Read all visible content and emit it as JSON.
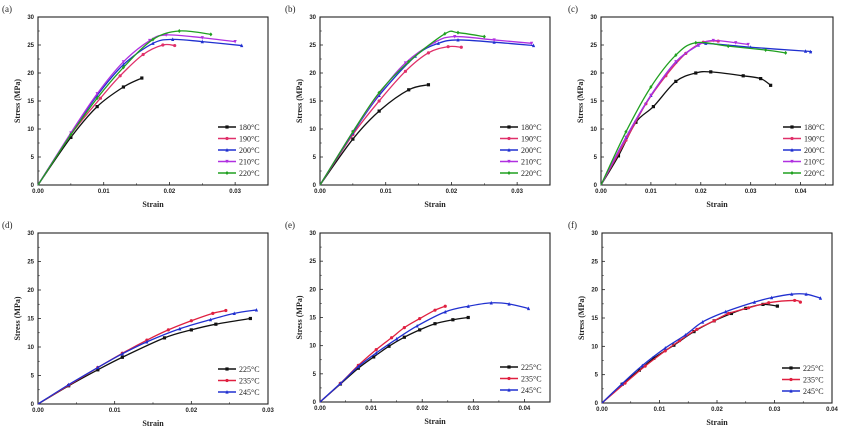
{
  "chart_data": [
    {
      "type": "line",
      "panel_label": "(a)",
      "xlabel": "Strain",
      "ylabel": "Stress (MPa)",
      "xlim": [
        0,
        0.035
      ],
      "ylim": [
        0,
        30
      ],
      "xticks": [
        "0.00",
        "0.01",
        "0.02",
        "0.03"
      ],
      "yticks": [
        "0",
        "5",
        "10",
        "15",
        "20",
        "25",
        "30"
      ],
      "legend_position": "bottom-right",
      "series": [
        {
          "name": "180°C",
          "color": "#111111",
          "x": [
            0,
            0.005,
            0.009,
            0.013,
            0.0158
          ],
          "y": [
            0,
            8.5,
            14,
            17.5,
            19.1
          ]
        },
        {
          "name": "190°C",
          "color": "#e0306a",
          "x": [
            0,
            0.005,
            0.0095,
            0.0125,
            0.016,
            0.019,
            0.0208
          ],
          "y": [
            0,
            9,
            15.5,
            19.5,
            23.3,
            25,
            24.9
          ]
        },
        {
          "name": "200°C",
          "color": "#2030d0",
          "x": [
            0,
            0.005,
            0.009,
            0.013,
            0.0175,
            0.0205,
            0.025,
            0.031
          ],
          "y": [
            0,
            9.2,
            16,
            21.5,
            25.3,
            26,
            25.6,
            24.9
          ]
        },
        {
          "name": "210°C",
          "color": "#b030e0",
          "x": [
            0,
            0.005,
            0.009,
            0.013,
            0.017,
            0.0195,
            0.025,
            0.03
          ],
          "y": [
            0,
            9.3,
            16.3,
            22,
            25.8,
            26.8,
            26.3,
            25.6
          ]
        },
        {
          "name": "220°C",
          "color": "#20a020",
          "x": [
            0,
            0.005,
            0.009,
            0.013,
            0.0175,
            0.0215,
            0.0263
          ],
          "y": [
            0,
            9,
            15.5,
            21,
            26,
            27.5,
            26.9
          ]
        }
      ]
    },
    {
      "type": "line",
      "panel_label": "(b)",
      "xlabel": "Strain",
      "ylabel": "Stress (MPa)",
      "xlim": [
        0,
        0.035
      ],
      "ylim": [
        0,
        30
      ],
      "xticks": [
        "0.00",
        "0.01",
        "0.02",
        "0.03"
      ],
      "yticks": [
        "0",
        "5",
        "10",
        "15",
        "20",
        "25",
        "30"
      ],
      "legend_position": "bottom-right",
      "series": [
        {
          "name": "180°C",
          "color": "#111111",
          "x": [
            0,
            0.005,
            0.009,
            0.0135,
            0.0165
          ],
          "y": [
            0,
            8.2,
            13.2,
            17,
            17.9
          ]
        },
        {
          "name": "190°C",
          "color": "#e0306a",
          "x": [
            0,
            0.005,
            0.009,
            0.013,
            0.0165,
            0.0195,
            0.0215
          ],
          "y": [
            0,
            9,
            15,
            20.3,
            23.6,
            24.7,
            24.6
          ]
        },
        {
          "name": "200°C",
          "color": "#2030d0",
          "x": [
            0,
            0.005,
            0.009,
            0.0145,
            0.018,
            0.021,
            0.0265,
            0.0325
          ],
          "y": [
            0,
            9.3,
            16,
            23,
            25.3,
            25.9,
            25.5,
            24.9
          ]
        },
        {
          "name": "210°C",
          "color": "#b030e0",
          "x": [
            0,
            0.005,
            0.009,
            0.013,
            0.0175,
            0.0205,
            0.0265,
            0.0322
          ],
          "y": [
            0,
            9.5,
            16.3,
            21.8,
            25.5,
            26.5,
            25.9,
            25.3
          ]
        },
        {
          "name": "220°C",
          "color": "#20a020",
          "x": [
            0,
            0.005,
            0.009,
            0.0135,
            0.019,
            0.021,
            0.025
          ],
          "y": [
            0,
            9.5,
            16.5,
            22,
            27,
            27.2,
            26.5
          ]
        }
      ]
    },
    {
      "type": "line",
      "panel_label": "(c)",
      "xlabel": "Strain",
      "ylabel": "Stress (MPa)",
      "xlim": [
        0,
        0.0465
      ],
      "ylim": [
        0,
        30
      ],
      "xticks": [
        "0.00",
        "0.01",
        "0.02",
        "0.03",
        "0.04"
      ],
      "yticks": [
        "0",
        "5",
        "10",
        "15",
        "20",
        "25",
        "30"
      ],
      "legend_position": "bottom-right",
      "series": [
        {
          "name": "180°C",
          "color": "#111111",
          "x": [
            0,
            0.0035,
            0.007,
            0.0105,
            0.015,
            0.019,
            0.022,
            0.0285,
            0.032,
            0.034
          ],
          "y": [
            0,
            5.2,
            11.2,
            14,
            18.5,
            20,
            20.2,
            19.5,
            19,
            17.8
          ]
        },
        {
          "name": "190°C",
          "color": "#e0306a",
          "x": [
            0,
            0.005,
            0.009,
            0.013,
            0.017,
            0.0205,
            0.0235
          ],
          "y": [
            0,
            8,
            14.5,
            19.5,
            23.5,
            25.5,
            25.7
          ]
        },
        {
          "name": "200°C",
          "color": "#2030d0",
          "x": [
            0,
            0.005,
            0.01,
            0.015,
            0.0195,
            0.021,
            0.03,
            0.041,
            0.042
          ],
          "y": [
            0,
            8.5,
            16,
            22,
            25,
            25.3,
            24.6,
            23.9,
            23.8
          ]
        },
        {
          "name": "210°C",
          "color": "#b030e0",
          "x": [
            0,
            0.005,
            0.01,
            0.015,
            0.0195,
            0.0225,
            0.027,
            0.0295
          ],
          "y": [
            0,
            8.5,
            16,
            22,
            25,
            25.8,
            25.4,
            25.1
          ]
        },
        {
          "name": "220°C",
          "color": "#20a020",
          "x": [
            0,
            0.005,
            0.01,
            0.015,
            0.019,
            0.0255,
            0.033,
            0.037
          ],
          "y": [
            0,
            9.5,
            17.5,
            23.2,
            25.4,
            24.8,
            24.1,
            23.6
          ]
        }
      ]
    },
    {
      "type": "line",
      "panel_label": "(d)",
      "xlabel": "Strain",
      "ylabel": "Stress (MPa)",
      "xlim": [
        0,
        0.03
      ],
      "ylim": [
        0,
        30
      ],
      "xticks": [
        "0.00",
        "0.01",
        "0.02",
        "0.03"
      ],
      "yticks": [
        "0",
        "5",
        "10",
        "15",
        "20",
        "25",
        "30"
      ],
      "legend_position": "bottom-right",
      "series": [
        {
          "name": "225°C",
          "color": "#111111",
          "x": [
            0,
            0.004,
            0.0078,
            0.011,
            0.0165,
            0.02,
            0.0232,
            0.0277
          ],
          "y": [
            0,
            3.2,
            6,
            8.2,
            11.6,
            13,
            14,
            15
          ]
        },
        {
          "name": "235°C",
          "color": "#e02040",
          "x": [
            0,
            0.004,
            0.0078,
            0.011,
            0.0142,
            0.017,
            0.02,
            0.0228,
            0.0245
          ],
          "y": [
            0,
            3.3,
            6.4,
            8.9,
            11.2,
            13,
            14.6,
            15.9,
            16.4
          ]
        },
        {
          "name": "245°C",
          "color": "#2030d0",
          "x": [
            0,
            0.004,
            0.0078,
            0.011,
            0.0142,
            0.0185,
            0.0225,
            0.0256,
            0.0285
          ],
          "y": [
            0,
            3.4,
            6.4,
            8.8,
            10.9,
            13.2,
            14.8,
            15.9,
            16.5
          ]
        }
      ]
    },
    {
      "type": "line",
      "panel_label": "(e)",
      "xlabel": "Strain",
      "ylabel": "Stress (MPa)",
      "xlim": [
        0,
        0.045
      ],
      "ylim": [
        0,
        30
      ],
      "xticks": [
        "0.00",
        "0.01",
        "0.02",
        "0.03",
        "0.04"
      ],
      "yticks": [
        "0",
        "5",
        "10",
        "15",
        "20",
        "25",
        "30"
      ],
      "legend_position": "bottom-right",
      "series": [
        {
          "name": "225°C",
          "color": "#111111",
          "x": [
            0,
            0.004,
            0.0075,
            0.0105,
            0.0135,
            0.0165,
            0.0195,
            0.0225,
            0.026,
            0.029
          ],
          "y": [
            0,
            3.2,
            6,
            8,
            9.9,
            11.5,
            12.8,
            13.9,
            14.6,
            15
          ]
        },
        {
          "name": "235°C",
          "color": "#e02040",
          "x": [
            0,
            0.004,
            0.0075,
            0.011,
            0.014,
            0.0165,
            0.0195,
            0.0225,
            0.0245
          ],
          "y": [
            0,
            3.3,
            6.5,
            9.3,
            11.4,
            13.2,
            14.8,
            16.3,
            17
          ]
        },
        {
          "name": "245°C",
          "color": "#2030d0",
          "x": [
            0,
            0.004,
            0.0075,
            0.011,
            0.015,
            0.019,
            0.0245,
            0.029,
            0.0335,
            0.037,
            0.0408
          ],
          "y": [
            0,
            3.3,
            6.3,
            8.7,
            11.2,
            13.5,
            16,
            17,
            17.6,
            17.4,
            16.6
          ]
        }
      ]
    },
    {
      "type": "line",
      "panel_label": "(f)",
      "xlabel": "Strain",
      "ylabel": "Stress (MPa)",
      "xlim": [
        0,
        0.04
      ],
      "ylim": [
        0,
        30
      ],
      "xticks": [
        "0.00",
        "0.01",
        "0.02",
        "0.03",
        "0.04"
      ],
      "yticks": [
        "0",
        "5",
        "10",
        "15",
        "20",
        "25",
        "30"
      ],
      "legend_position": "bottom-right",
      "series": [
        {
          "name": "225°C",
          "color": "#111111",
          "x": [
            0,
            0.0035,
            0.0065,
            0.009,
            0.0125,
            0.016,
            0.0195,
            0.0225,
            0.025,
            0.028,
            0.0305
          ],
          "y": [
            0,
            3.3,
            5.8,
            7.9,
            10.2,
            12.6,
            14.5,
            15.8,
            16.7,
            17.4,
            17.1
          ]
        },
        {
          "name": "235°C",
          "color": "#e02040",
          "x": [
            0,
            0.004,
            0.0075,
            0.011,
            0.0135,
            0.0165,
            0.0195,
            0.022,
            0.0255,
            0.029,
            0.0335,
            0.0345
          ],
          "y": [
            0,
            3.5,
            6.5,
            9.2,
            11,
            13,
            14.5,
            15.8,
            16.8,
            17.7,
            18.1,
            17.8
          ]
        },
        {
          "name": "245°C",
          "color": "#2030d0",
          "x": [
            0,
            0.0035,
            0.007,
            0.011,
            0.0145,
            0.0175,
            0.0215,
            0.0265,
            0.0295,
            0.033,
            0.0355,
            0.038
          ],
          "y": [
            0,
            3.4,
            6.6,
            9.7,
            12,
            14.3,
            16.1,
            17.8,
            18.6,
            19.2,
            19.2,
            18.5
          ]
        }
      ]
    }
  ]
}
